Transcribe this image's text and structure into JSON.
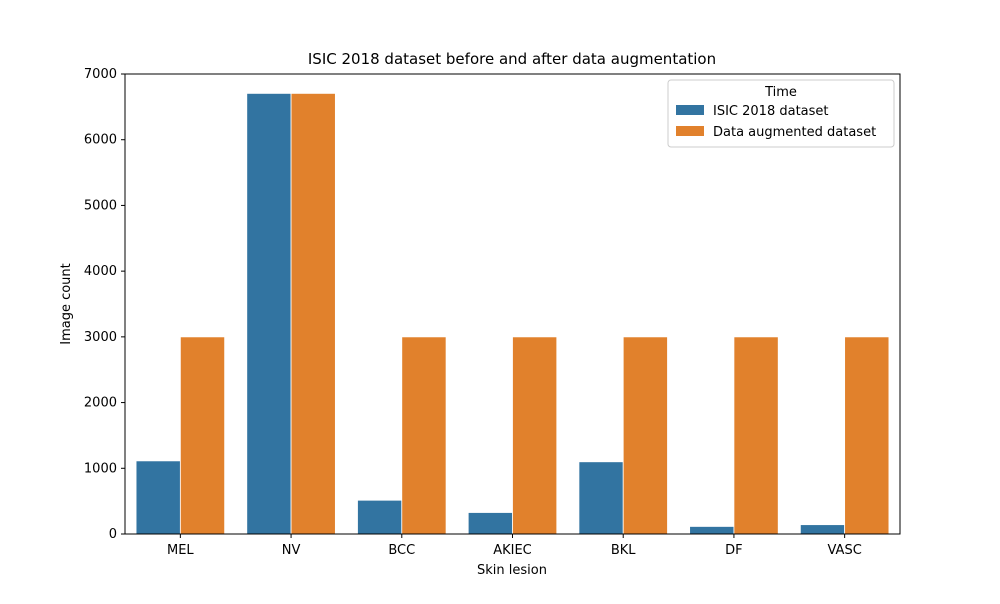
{
  "chart_data": {
    "type": "bar",
    "title": "ISIC 2018 dataset before and after data augmentation",
    "xlabel": "Skin lesion",
    "ylabel": "Image count",
    "categories": [
      "MEL",
      "NV",
      "BCC",
      "AKIEC",
      "BKL",
      "DF",
      "VASC"
    ],
    "series": [
      {
        "name": "ISIC 2018 dataset",
        "values": [
          1113,
          6705,
          514,
          327,
          1099,
          115,
          142
        ],
        "color": "#3274a1"
      },
      {
        "name": "Data augmented dataset",
        "values": [
          3000,
          6705,
          3000,
          3000,
          3000,
          3000,
          3000
        ],
        "color": "#e1812c"
      }
    ],
    "ylim": [
      0,
      7000
    ],
    "yticks": [
      0,
      1000,
      2000,
      3000,
      4000,
      5000,
      6000,
      7000
    ],
    "grid": false,
    "legend": {
      "title": "Time",
      "position": "top-right"
    }
  }
}
